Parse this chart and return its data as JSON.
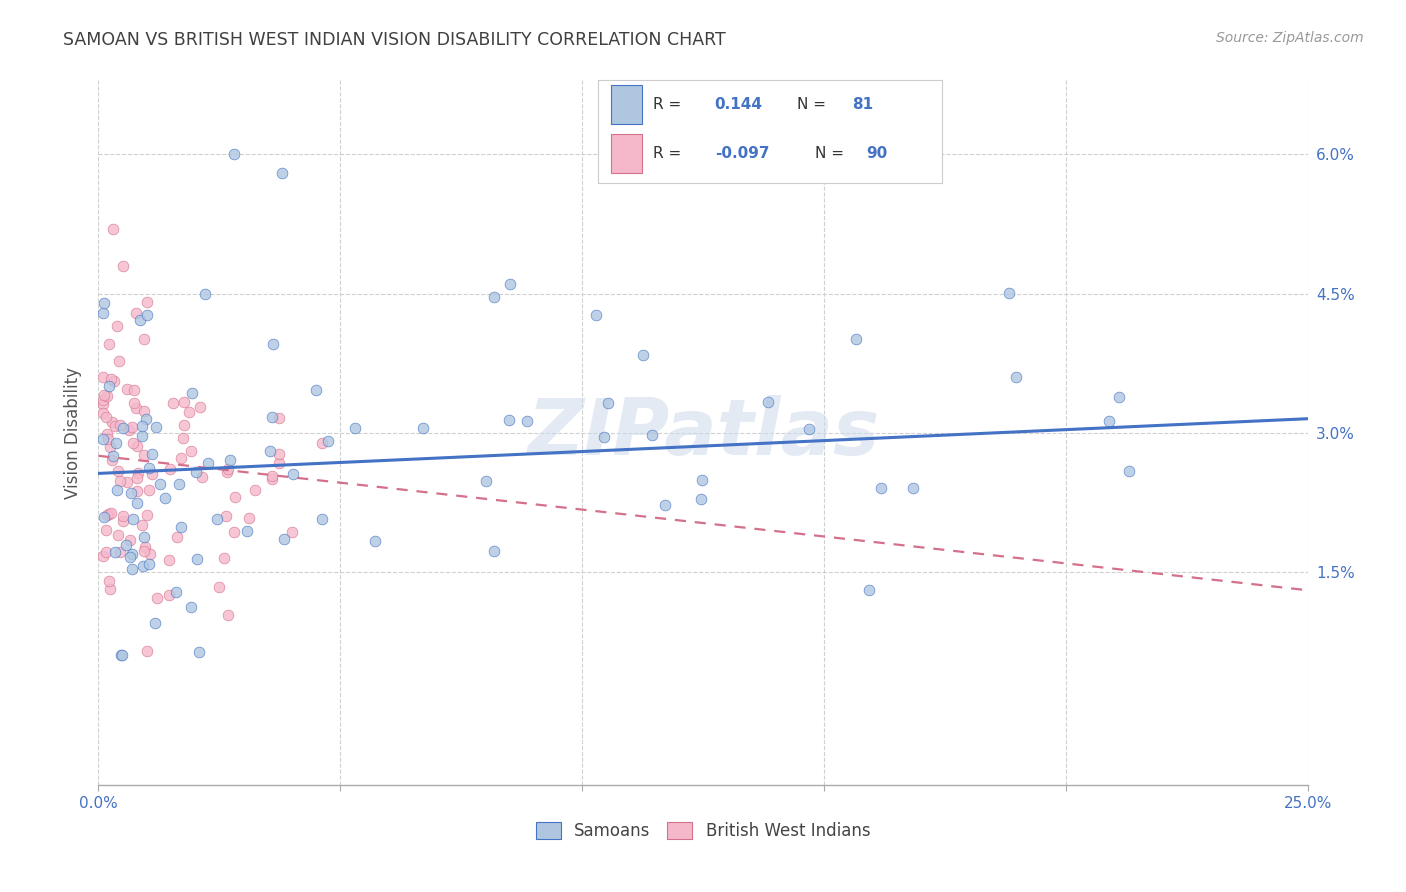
{
  "title": "SAMOAN VS BRITISH WEST INDIAN VISION DISABILITY CORRELATION CHART",
  "source": "Source: ZipAtlas.com",
  "ylabel": "Vision Disability",
  "xlim": [
    0.0,
    0.25
  ],
  "ylim": [
    -0.008,
    0.068
  ],
  "watermark": "ZIPatlas",
  "samoan_color": "#aec6e0",
  "samoan_edge": "#4472c4",
  "bwi_color": "#f5b8cb",
  "bwi_edge": "#d4708a",
  "line_samoan_color": "#4472c4",
  "line_bwi_color": "#d4708a",
  "background_color": "#ffffff",
  "grid_color": "#d0d0d0",
  "title_color": "#404040",
  "tick_color": "#4472c4",
  "ylabel_color": "#555555",
  "legend_text_color": "#4472c4",
  "legend_label_color": "#333333",
  "samoan_trend_x0": 0.0,
  "samoan_trend_y0": 0.0256,
  "samoan_trend_x1": 0.25,
  "samoan_trend_y1": 0.0315,
  "bwi_trend_x0": 0.0,
  "bwi_trend_y0": 0.0275,
  "bwi_trend_x1": 0.25,
  "bwi_trend_y1": 0.013,
  "ytick_vals": [
    0.015,
    0.03,
    0.045,
    0.06
  ],
  "ytick_labels": [
    "1.5%",
    "3.0%",
    "4.5%",
    "6.0%"
  ],
  "xtick_positions": [
    0.0,
    0.05,
    0.1,
    0.15,
    0.2,
    0.25
  ],
  "n_samoans": 81,
  "n_bwi": 90,
  "R_samoan": 0.144,
  "R_bwi": -0.097
}
